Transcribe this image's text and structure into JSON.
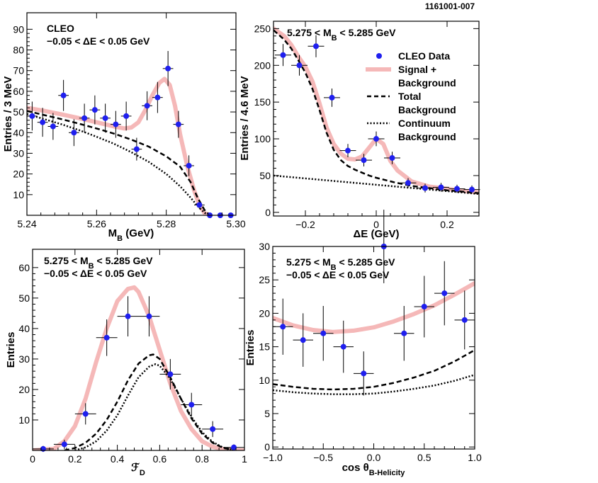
{
  "figure_id": "1161001-007",
  "colors": {
    "data": "#1f1fef",
    "signal": "#f5b8b8",
    "background": "#000000"
  },
  "chart_data": [
    {
      "type": "scatter",
      "id": "mb",
      "title": "",
      "xlabel": "M_B (GeV)",
      "ylabel": "Entries / 3 MeV",
      "xlim": [
        5.24,
        5.3
      ],
      "ylim": [
        0,
        98
      ],
      "xticks": [
        5.24,
        5.26,
        5.28,
        5.3
      ],
      "xtick_labels": [
        "5.24",
        "5.26",
        "5.28",
        "5.30"
      ],
      "yticks": [
        10,
        20,
        30,
        40,
        50,
        60,
        70,
        80,
        90
      ],
      "ytick_labels": [
        "10",
        "20",
        "30",
        "40",
        "50",
        "60",
        "70",
        "80",
        "90"
      ],
      "annotations": [
        "CLEO",
        "−0.05 < ΔE < 0.05 GeV"
      ],
      "data_points": {
        "x": [
          5.2415,
          5.2445,
          5.2475,
          5.2505,
          5.2535,
          5.2565,
          5.2595,
          5.2625,
          5.2655,
          5.2685,
          5.2715,
          5.2745,
          5.2775,
          5.2805,
          5.2835,
          5.2865,
          5.2895,
          5.2925,
          5.2955,
          5.2985
        ],
        "y": [
          48,
          45,
          43,
          58,
          40,
          47,
          51,
          47,
          44,
          48,
          32,
          53,
          57,
          71,
          44,
          24,
          5,
          0,
          0,
          0
        ],
        "err": [
          7,
          7,
          6.5,
          7.5,
          6.5,
          7,
          7,
          7,
          6.5,
          7,
          5.5,
          7,
          7.5,
          8.5,
          6.5,
          5,
          2,
          0,
          0,
          0
        ],
        "xerr": 0.0015
      },
      "curves": [
        {
          "name": "Signal + Background",
          "style": "thick-pink",
          "x": [
            5.24,
            5.245,
            5.25,
            5.255,
            5.26,
            5.265,
            5.268,
            5.27,
            5.272,
            5.274,
            5.276,
            5.278,
            5.2795,
            5.281,
            5.2825,
            5.284,
            5.286,
            5.288,
            5.2895,
            5.291,
            5.2925
          ],
          "y": [
            52,
            50.5,
            48.8,
            47,
            45,
            43,
            42,
            42.5,
            45,
            51,
            58,
            64,
            66,
            63,
            53,
            39,
            24,
            12,
            5,
            1,
            0
          ]
        },
        {
          "name": "Total Background",
          "style": "dashed",
          "x": [
            5.24,
            5.245,
            5.25,
            5.255,
            5.26,
            5.265,
            5.27,
            5.275,
            5.28,
            5.284,
            5.287,
            5.289,
            5.291,
            5.2925
          ],
          "y": [
            50.5,
            48.5,
            46.5,
            44.3,
            42,
            39.5,
            36.6,
            33.2,
            28.5,
            23.5,
            16,
            8.5,
            2.5,
            0
          ]
        },
        {
          "name": "Continuum Background",
          "style": "dotted",
          "x": [
            5.24,
            5.245,
            5.25,
            5.255,
            5.26,
            5.265,
            5.27,
            5.275,
            5.28,
            5.284,
            5.287,
            5.289,
            5.291,
            5.2925
          ],
          "y": [
            49,
            46.5,
            44,
            41.2,
            38,
            34.6,
            30.5,
            25.8,
            20,
            14,
            8.5,
            4.5,
            1.2,
            0
          ]
        }
      ]
    },
    {
      "type": "scatter",
      "id": "de",
      "title": "",
      "xlabel": "ΔE (GeV)",
      "ylabel": "Entries / 4.6 MeV",
      "xlim": [
        -0.29,
        0.29
      ],
      "ylim": [
        -5,
        260
      ],
      "xticks": [
        -0.2,
        0,
        0.2
      ],
      "xtick_labels": [
        "−0.2",
        "0",
        "0.2"
      ],
      "yticks": [
        0,
        50,
        100,
        150,
        200,
        250
      ],
      "ytick_labels": [
        "0",
        "50",
        "100",
        "150",
        "200",
        "250"
      ],
      "annotations": [
        "5.275 < M_B < 5.285 GeV"
      ],
      "legend": {
        "position": "top-right",
        "entries": [
          "CLEO Data",
          "Signal +",
          "Background",
          "Total",
          "Background",
          "Continuum",
          "Background"
        ]
      },
      "data_points": {
        "x": [
          -0.263,
          -0.217,
          -0.17,
          -0.125,
          -0.08,
          -0.035,
          0.0,
          0.045,
          0.09,
          0.138,
          0.183,
          0.228,
          0.27
        ],
        "y": [
          214,
          200,
          226,
          156,
          84,
          71,
          100,
          74,
          40,
          33,
          34,
          32,
          31
        ],
        "err": [
          15,
          14,
          15,
          12.5,
          9,
          8.5,
          10,
          8.5,
          6.5,
          6,
          6,
          5.5,
          5.5
        ],
        "xerr": 0.023
      },
      "curves": [
        {
          "name": "Signal + Background",
          "style": "thick-pink",
          "x": [
            -0.29,
            -0.26,
            -0.24,
            -0.22,
            -0.2,
            -0.18,
            -0.16,
            -0.14,
            -0.12,
            -0.1,
            -0.08,
            -0.06,
            -0.04,
            -0.02,
            0,
            0.02,
            0.04,
            0.06,
            0.1,
            0.15,
            0.2,
            0.25,
            0.29
          ],
          "y": [
            250,
            240,
            228,
            212,
            198,
            178,
            148,
            115,
            93,
            80,
            73,
            72,
            76,
            88,
            100,
            93,
            70,
            57,
            42,
            35,
            32,
            29,
            27
          ]
        },
        {
          "name": "Total Background",
          "style": "dashed",
          "x": [
            -0.29,
            -0.26,
            -0.24,
            -0.22,
            -0.2,
            -0.18,
            -0.16,
            -0.14,
            -0.12,
            -0.1,
            -0.08,
            -0.06,
            -0.04,
            -0.02,
            0,
            0.05,
            0.1,
            0.15,
            0.2,
            0.25,
            0.29
          ],
          "y": [
            248,
            235,
            223,
            207,
            190,
            168,
            139,
            108,
            85,
            71,
            63,
            58,
            54,
            50,
            47,
            41,
            36,
            33,
            30,
            28,
            26
          ]
        },
        {
          "name": "Continuum Background",
          "style": "dotted",
          "x": [
            -0.29,
            0.29
          ],
          "y": [
            50,
            25
          ]
        }
      ]
    },
    {
      "type": "scatter",
      "id": "fd",
      "title": "",
      "xlabel": "ℱ_D",
      "ylabel": "Entries",
      "xlim": [
        0,
        1
      ],
      "ylim": [
        0,
        66
      ],
      "xticks": [
        0,
        0.2,
        0.4,
        0.6,
        0.8,
        1
      ],
      "xtick_labels": [
        "0",
        "0.2",
        "0.4",
        "0.6",
        "0.8",
        "1"
      ],
      "yticks": [
        10,
        20,
        30,
        40,
        50,
        60
      ],
      "ytick_labels": [
        "10",
        "20",
        "30",
        "40",
        "50",
        "60"
      ],
      "annotations": [
        "5.275 < M_B < 5.285 GeV",
        "−0.05 < ΔE < 0.05 GeV"
      ],
      "data_points": {
        "x": [
          0.05,
          0.15,
          0.25,
          0.35,
          0.45,
          0.55,
          0.65,
          0.75,
          0.85,
          0.95
        ],
        "y": [
          0.5,
          2,
          12,
          37,
          44,
          44,
          25,
          15,
          7,
          1
        ],
        "err": [
          1,
          1.5,
          3.5,
          6,
          6.6,
          6.6,
          5,
          3.9,
          2.6,
          1
        ],
        "xerr": 0.05
      },
      "curves": [
        {
          "name": "Signal + Background",
          "style": "thick-pink",
          "x": [
            0,
            0.1,
            0.15,
            0.2,
            0.25,
            0.3,
            0.35,
            0.4,
            0.45,
            0.48,
            0.5,
            0.55,
            0.6,
            0.65,
            0.7,
            0.75,
            0.8,
            0.85,
            0.9,
            0.95,
            1.0
          ],
          "y": [
            0,
            0.5,
            3,
            8,
            17,
            29,
            40,
            49,
            53,
            53.5,
            52,
            44,
            33,
            22,
            13,
            7,
            3,
            1.2,
            0.4,
            0.1,
            0
          ]
        },
        {
          "name": "Total Background",
          "style": "dashed",
          "x": [
            0.15,
            0.2,
            0.25,
            0.3,
            0.35,
            0.4,
            0.45,
            0.5,
            0.55,
            0.57,
            0.6,
            0.65,
            0.7,
            0.75,
            0.8,
            0.85,
            0.9,
            0.95
          ],
          "y": [
            0,
            0.8,
            2.5,
            5.5,
            10,
            16,
            23,
            28.5,
            31.2,
            31.5,
            30,
            24,
            17,
            10.5,
            5.5,
            2.5,
            0.8,
            0.2
          ]
        },
        {
          "name": "Continuum Background",
          "style": "dotted",
          "x": [
            0.2,
            0.25,
            0.3,
            0.35,
            0.4,
            0.45,
            0.5,
            0.55,
            0.58,
            0.6,
            0.65,
            0.7,
            0.75,
            0.8,
            0.85,
            0.9,
            0.95
          ],
          "y": [
            0,
            1,
            3,
            6.5,
            11.5,
            18,
            24,
            27.5,
            28.3,
            27.8,
            23.5,
            17,
            11,
            6,
            2.8,
            0.9,
            0.2
          ]
        }
      ]
    },
    {
      "type": "scatter",
      "id": "hel",
      "title": "",
      "xlabel": "cos θ_B-Helicity",
      "ylabel": "Entries",
      "xlim": [
        -1,
        1
      ],
      "ylim": [
        -0.3,
        30
      ],
      "xticks": [
        -1,
        -0.5,
        0,
        0.5,
        1
      ],
      "xtick_labels": [
        "−1.0",
        "−0.5",
        "0.0",
        "0.5",
        "1.0"
      ],
      "yticks": [
        0,
        5,
        10,
        15,
        20,
        25,
        30
      ],
      "ytick_labels": [
        "0",
        "5",
        "10",
        "15",
        "20",
        "25",
        "30"
      ],
      "annotations": [
        "5.275 < M_B < 5.285 GeV",
        "−0.05 < ΔE < 0.05 GeV"
      ],
      "data_points": {
        "x": [
          -0.9,
          -0.7,
          -0.5,
          -0.3,
          -0.1,
          0.1,
          0.3,
          0.5,
          0.7,
          0.9
        ],
        "y": [
          18,
          16,
          17,
          15,
          11,
          30,
          17,
          21,
          23,
          19
        ],
        "err": [
          4.2,
          4,
          4.1,
          3.9,
          3.3,
          5.5,
          4.1,
          4.6,
          4.8,
          4.4
        ],
        "xerr": 0.1
      },
      "curves": [
        {
          "name": "Signal + Background",
          "style": "thick-pink",
          "x": [
            -1,
            -0.8,
            -0.6,
            -0.4,
            -0.2,
            0,
            0.2,
            0.4,
            0.6,
            0.8,
            1
          ],
          "y": [
            19.3,
            18.2,
            17.5,
            17.2,
            17.4,
            17.9,
            18.8,
            19.9,
            21.2,
            22.8,
            24.5
          ]
        },
        {
          "name": "Total Background",
          "style": "dashed",
          "x": [
            -1,
            -0.8,
            -0.6,
            -0.4,
            -0.2,
            0,
            0.2,
            0.4,
            0.6,
            0.8,
            1
          ],
          "y": [
            9.4,
            9.0,
            8.7,
            8.6,
            8.7,
            9.0,
            9.6,
            10.4,
            11.4,
            12.8,
            14.5
          ]
        },
        {
          "name": "Continuum Background",
          "style": "dotted",
          "x": [
            -1,
            -0.8,
            -0.6,
            -0.4,
            -0.2,
            0,
            0.2,
            0.4,
            0.6,
            0.8,
            1
          ],
          "y": [
            8.5,
            8.2,
            8.0,
            7.9,
            7.9,
            8.0,
            8.3,
            8.7,
            9.2,
            9.9,
            10.8
          ]
        }
      ]
    }
  ]
}
